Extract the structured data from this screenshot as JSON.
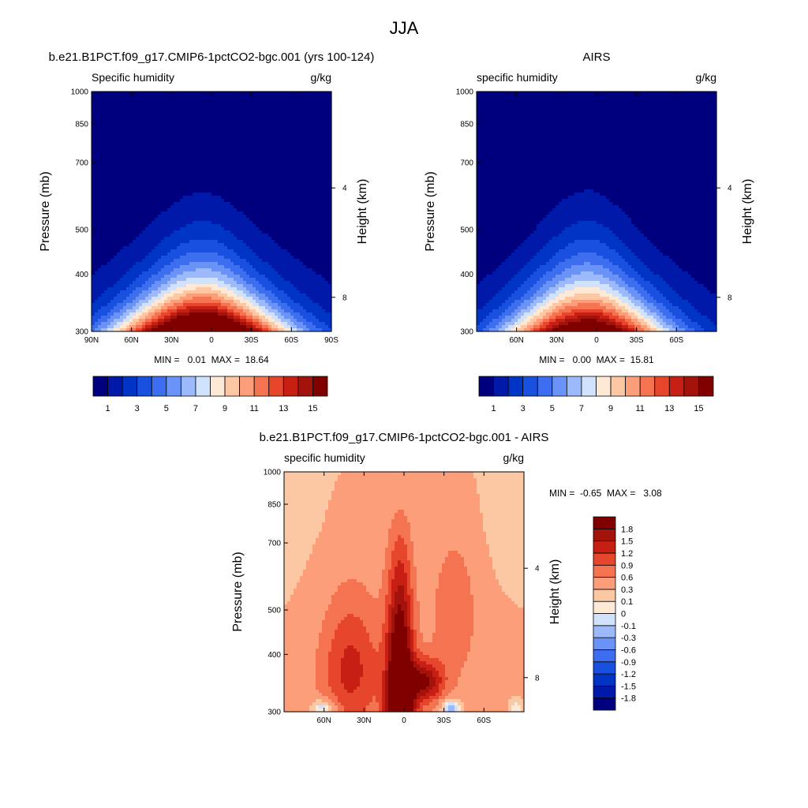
{
  "figure_title": "JJA",
  "chart_data": [
    {
      "type": "heatmap",
      "panel_id": "model",
      "title": "b.e21.B1PCT.f09_g17.CMIP6-1pctCO2-bgc.001 (yrs 100-124)",
      "left_string": "Specific humidity",
      "right_string": "g/kg",
      "ylabel": "Pressure (mb)",
      "ylabel_right": "Height (km)",
      "x_ticks": [
        "90N",
        "60N",
        "30N",
        "0",
        "30S",
        "60S",
        "90S"
      ],
      "y_ticks": [
        "300",
        "400",
        "500",
        "700",
        "850",
        "1000"
      ],
      "y_right_ticks": [
        "8",
        "4"
      ],
      "xlim": [
        90,
        -90
      ],
      "ylim": [
        1000,
        300
      ],
      "stats": "MIN =   0.01  MAX =  18.64",
      "min": 0.01,
      "max": 18.64,
      "levels": [
        1,
        2,
        3,
        4,
        5,
        6,
        7,
        8,
        9,
        10,
        11,
        12,
        13,
        14,
        15
      ],
      "colorbar_labels": [
        "1",
        "3",
        "5",
        "7",
        "9",
        "11",
        "13",
        "15"
      ],
      "field": {
        "peak": 18.6,
        "center_lat": 8,
        "height_scale": 1.0,
        "width_scale": 1.0,
        "base": 3.5
      },
      "missing": [
        {
          "lat_from": -56,
          "lat_to": -90,
          "p_from": 930,
          "p_to": 1000
        },
        {
          "lat_from": -83,
          "lat_to": -90,
          "p_from": 570,
          "p_to": 930
        }
      ]
    },
    {
      "type": "heatmap",
      "panel_id": "obs",
      "title": "AIRS",
      "left_string": "specific humidity",
      "right_string": "g/kg",
      "ylabel": "Pressure (mb)",
      "ylabel_right": "Height (km)",
      "x_ticks": [
        "60N",
        "30N",
        "0",
        "30S",
        "60S"
      ],
      "y_ticks": [
        "300",
        "400",
        "500",
        "700",
        "850",
        "1000"
      ],
      "y_right_ticks": [
        "8",
        "4"
      ],
      "xlim": [
        90,
        -90
      ],
      "ylim": [
        1000,
        300
      ],
      "stats": "MIN =   0.00  MAX =  15.81",
      "min": 0.0,
      "max": 15.81,
      "levels": [
        1,
        2,
        3,
        4,
        5,
        6,
        7,
        8,
        9,
        10,
        11,
        12,
        13,
        14,
        15
      ],
      "colorbar_labels": [
        "1",
        "3",
        "5",
        "7",
        "9",
        "11",
        "13",
        "15"
      ],
      "field": {
        "peak": 15.8,
        "center_lat": 8,
        "height_scale": 0.9,
        "width_scale": 0.95,
        "base": 2.8
      },
      "missing": [
        {
          "lat_from": -85,
          "lat_to": -90,
          "p_from": 690,
          "p_to": 1000
        }
      ]
    },
    {
      "type": "heatmap",
      "panel_id": "diff",
      "title": "b.e21.B1PCT.f09_g17.CMIP6-1pctCO2-bgc.001 - AIRS",
      "left_string": "specific humidity",
      "right_string": "g/kg",
      "ylabel": "Pressure (mb)",
      "ylabel_right": "Height (km)",
      "x_ticks": [
        "60N",
        "30N",
        "0",
        "30S",
        "60S"
      ],
      "y_ticks": [
        "300",
        "400",
        "500",
        "700",
        "850",
        "1000"
      ],
      "y_right_ticks": [
        "8",
        "4"
      ],
      "xlim": [
        90,
        -90
      ],
      "ylim": [
        1000,
        300
      ],
      "stats": "MIN =  -0.65  MAX =   3.08",
      "min": -0.65,
      "max": 3.08,
      "levels": [
        -1.8,
        -1.5,
        -1.2,
        -0.9,
        -0.6,
        -0.3,
        -0.1,
        0,
        0.1,
        0.3,
        0.6,
        0.9,
        1.2,
        1.5,
        1.8
      ],
      "colorbar_labels": [
        "1.8",
        "1.5",
        "1.2",
        "0.9",
        "0.6",
        "0.3",
        "0.1",
        "0",
        "-0.1",
        "-0.3",
        "-0.6",
        "-0.9",
        "-1.2",
        "-1.5",
        "-1.8"
      ],
      "missing": [
        {
          "lat_from": -48,
          "lat_to": -90,
          "p_from": 920,
          "p_to": 1000
        }
      ]
    }
  ],
  "colors": {
    "palette": [
      "#00007f",
      "#0019a8",
      "#0034c5",
      "#1a50e0",
      "#3d6ef0",
      "#6a93f7",
      "#9cb9fb",
      "#d0e2fc",
      "#fde9d6",
      "#fcc8a4",
      "#fb9e79",
      "#f47350",
      "#e6462c",
      "#c71f13",
      "#a3120b",
      "#800000"
    ]
  }
}
